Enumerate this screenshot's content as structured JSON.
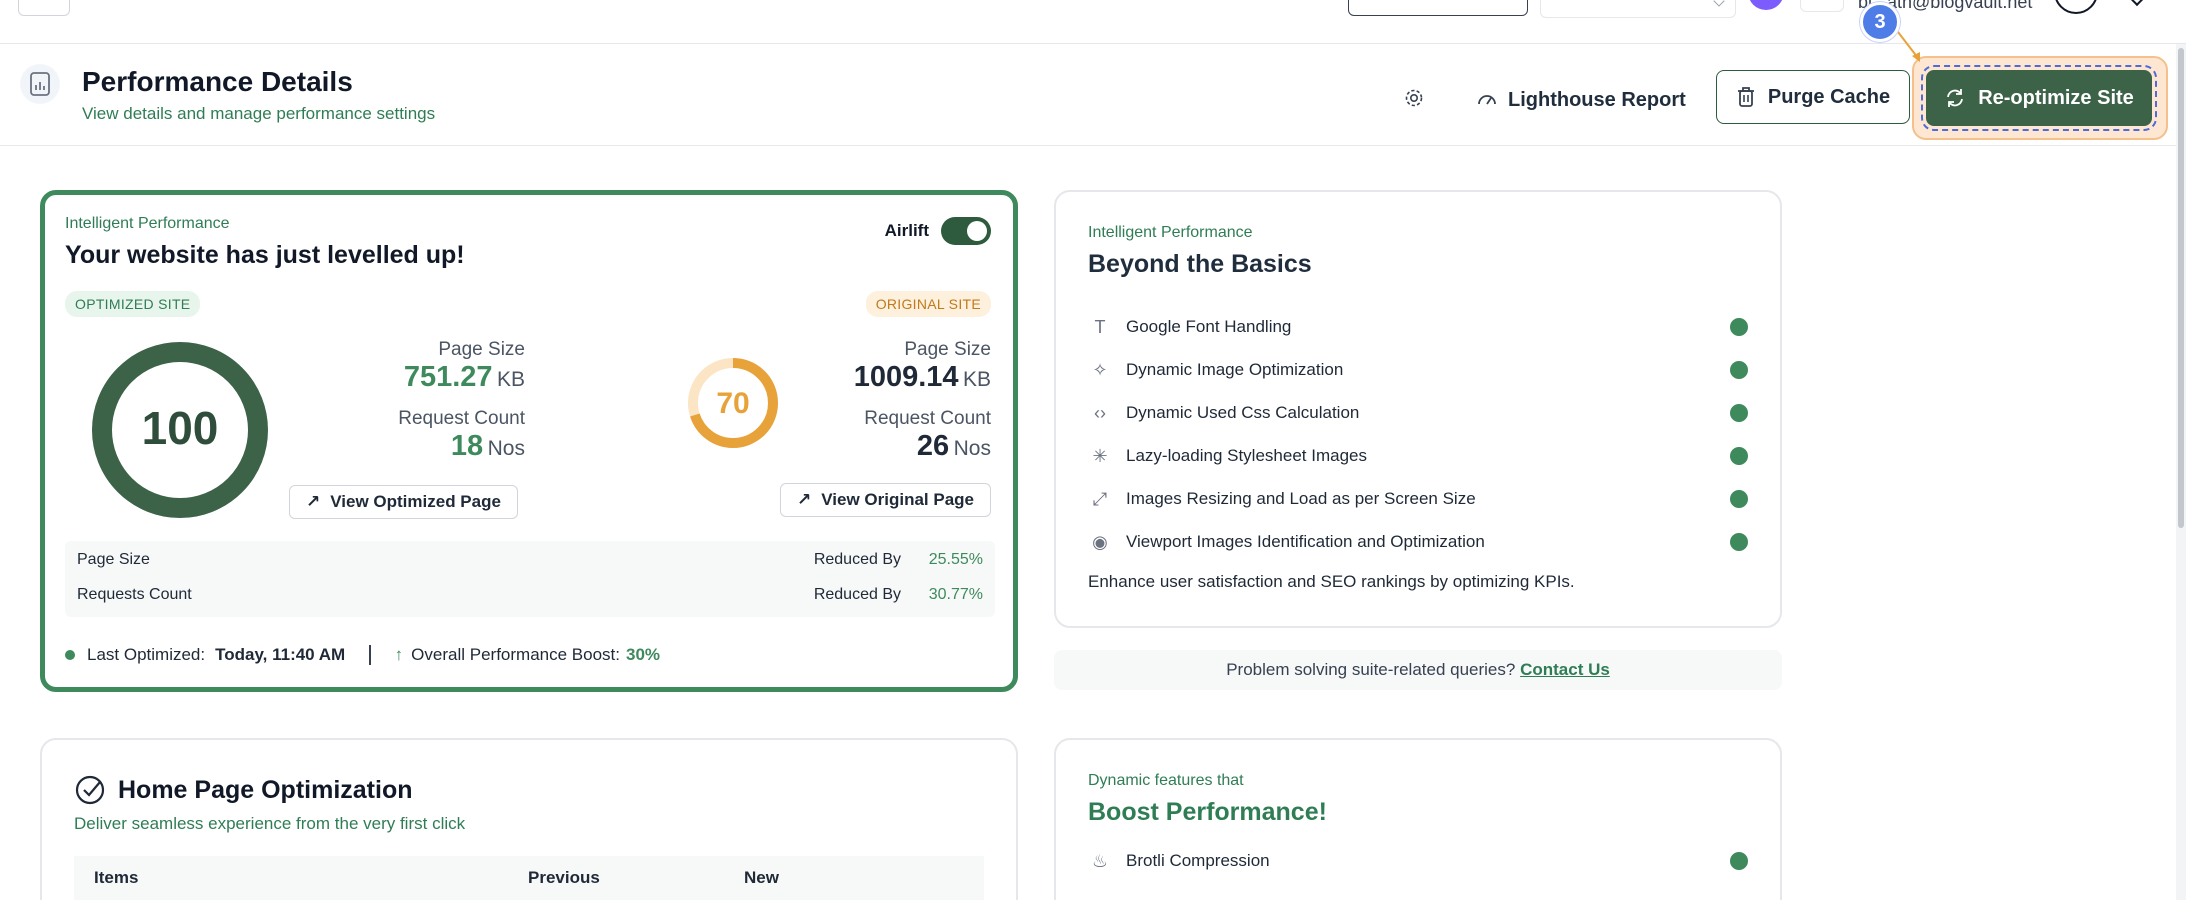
{
  "topnav": {
    "email": "bl...ath@blogvault.net"
  },
  "header": {
    "title": "Performance Details",
    "subtitle": "View details and manage performance settings",
    "lighthouse_label": "Lighthouse Report",
    "purge_label": "Purge Cache",
    "reoptimize_label": "Re-optimize Site",
    "step_number": "3"
  },
  "perf": {
    "eyebrow": "Intelligent Performance",
    "title": "Your website has just levelled up!",
    "airlift_label": "Airlift",
    "airlift_on": true,
    "optimized": {
      "tag": "OPTIMIZED SITE",
      "score": "100",
      "page_size_label": "Page Size",
      "page_size_value": "751.27",
      "page_size_unit": "KB",
      "request_label": "Request Count",
      "request_value": "18",
      "request_unit": "Nos",
      "view_label": "View Optimized Page"
    },
    "original": {
      "tag": "ORIGINAL SITE",
      "score": "70",
      "page_size_label": "Page Size",
      "page_size_value": "1009.14",
      "page_size_unit": "KB",
      "request_label": "Request Count",
      "request_value": "26",
      "request_unit": "Nos",
      "view_label": "View Original Page"
    },
    "comparison": [
      {
        "label": "Page Size",
        "reduced_label": "Reduced By",
        "pct": "25.55%"
      },
      {
        "label": "Requests Count",
        "reduced_label": "Reduced By",
        "pct": "30.77%"
      }
    ],
    "last_optimized_label": "Last Optimized:",
    "last_optimized_value": "Today, 11:40 AM",
    "boost_label": "Overall Performance Boost:",
    "boost_value": "30%"
  },
  "basics": {
    "eyebrow": "Intelligent Performance",
    "title": "Beyond the Basics",
    "features": [
      {
        "label": "Google Font Handling",
        "icon": "type-icon"
      },
      {
        "label": "Dynamic Image Optimization",
        "icon": "magic-wand-icon"
      },
      {
        "label": "Dynamic Used Css Calculation",
        "icon": "code-icon"
      },
      {
        "label": "Lazy-loading Stylesheet Images",
        "icon": "loader-icon"
      },
      {
        "label": "Images Resizing and Load as per Screen Size",
        "icon": "expand-icon"
      },
      {
        "label": "Viewport Images Identification and Optimization",
        "icon": "eye-icon"
      }
    ],
    "note": "Enhance user satisfaction and SEO rankings by optimizing KPIs."
  },
  "support": {
    "text": "Problem solving suite-related queries?",
    "link": "Contact Us"
  },
  "home": {
    "title": "Home Page Optimization",
    "subtitle": "Deliver seamless experience from the very first click",
    "columns": [
      "Items",
      "Previous",
      "New"
    ]
  },
  "boost": {
    "eyebrow": "Dynamic features that",
    "title": "Boost Performance!",
    "features": [
      {
        "label": "Brotli Compression",
        "icon": "flame-icon"
      }
    ]
  },
  "colors": {
    "brand_green": "#3f8a5d",
    "dark_green": "#3c6248",
    "orange": "#e8a23a",
    "step_blue": "#4f7de8"
  }
}
